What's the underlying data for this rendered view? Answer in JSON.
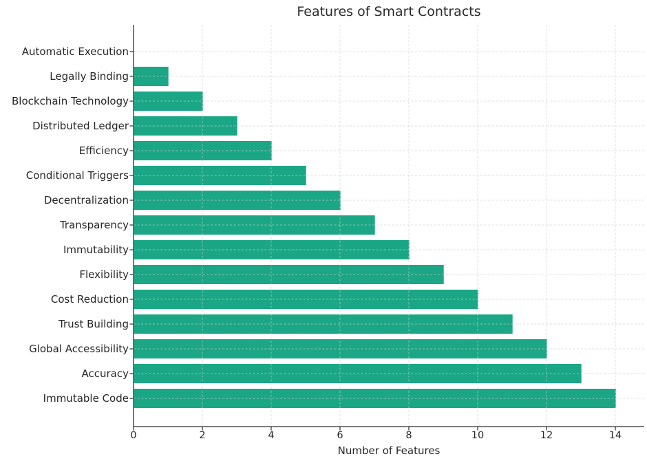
{
  "chart_data": {
    "type": "bar",
    "orientation": "horizontal",
    "title": "Features of Smart Contracts",
    "xlabel": "Number of Features",
    "ylabel": "",
    "categories": [
      "Automatic Execution",
      "Legally Binding",
      "Blockchain Technology",
      "Distributed Ledger",
      "Efficiency",
      "Conditional Triggers",
      "Decentralization",
      "Transparency",
      "Immutability",
      "Flexibility",
      "Cost Reduction",
      "Trust Building",
      "Global Accessibility",
      "Accuracy",
      "Immutable Code"
    ],
    "values": [
      0,
      1,
      2,
      3,
      4,
      5,
      6,
      7,
      8,
      9,
      10,
      11,
      12,
      13,
      14
    ],
    "xticks": [
      0,
      2,
      4,
      6,
      8,
      10,
      12,
      14
    ],
    "xlim": [
      0,
      14.84
    ],
    "grid": true,
    "grid_style": "dashed",
    "grid_axes": "both",
    "legend": "none",
    "colors": {
      "bar": "#1BA785",
      "grid": "#cccccc",
      "spine": "#2e2e2e",
      "text": "#262626"
    }
  }
}
